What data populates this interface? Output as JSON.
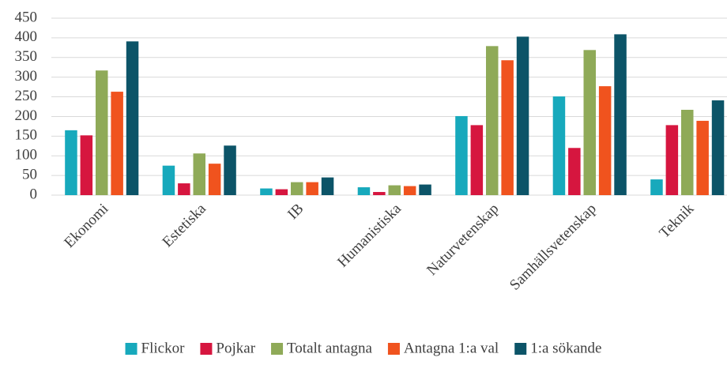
{
  "chart_data": {
    "type": "bar",
    "categories": [
      "Ekonomi",
      "Estetiska",
      "IB",
      "Humanistiska",
      "Naturvetenskap",
      "Samhällsvetenskap",
      "Teknik"
    ],
    "series": [
      {
        "name": "Flickor",
        "color": "#17a9bc",
        "values": [
          165,
          75,
          17,
          20,
          201,
          251,
          40
        ]
      },
      {
        "name": "Pojkar",
        "color": "#d6163f",
        "values": [
          152,
          30,
          15,
          8,
          178,
          120,
          178
        ]
      },
      {
        "name": "Totalt antagna",
        "color": "#8faa58",
        "values": [
          317,
          106,
          33,
          25,
          379,
          369,
          217
        ]
      },
      {
        "name": "Antagna 1:a val",
        "color": "#f0531e",
        "values": [
          263,
          80,
          33,
          23,
          343,
          277,
          189
        ]
      },
      {
        "name": "1:a sökande",
        "color": "#0c5468",
        "values": [
          391,
          126,
          45,
          27,
          403,
          409,
          241
        ]
      }
    ],
    "ylim": [
      0,
      450
    ],
    "yticks": [
      0,
      50,
      100,
      150,
      200,
      250,
      300,
      350,
      400,
      450
    ],
    "grid": true,
    "legend": "bottom"
  }
}
